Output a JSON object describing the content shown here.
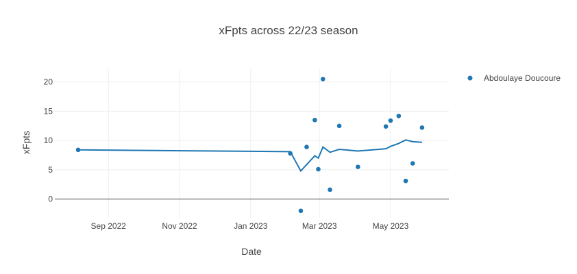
{
  "chart_data": {
    "type": "scatter",
    "title": "xFpts across 22/23 season",
    "xlabel": "Date",
    "ylabel": "xFpts",
    "xlim": [
      "2022-07-17",
      "2023-06-20"
    ],
    "ylim": [
      -3.2,
      22.3
    ],
    "grid": true,
    "legend_position": "top-right",
    "x_ticks": [
      {
        "date": "2022-09-01",
        "label": "Sep 2022"
      },
      {
        "date": "2022-11-01",
        "label": "Nov 2022"
      },
      {
        "date": "2023-01-01",
        "label": "Jan 2023"
      },
      {
        "date": "2023-03-01",
        "label": "Mar 2023"
      },
      {
        "date": "2023-05-01",
        "label": "May 2023"
      }
    ],
    "y_ticks": [
      0,
      5,
      10,
      15,
      20
    ],
    "series": [
      {
        "name": "Abdoulaye Doucoure",
        "mode": "markers",
        "color": "#1f77b4",
        "points": [
          {
            "x": "2022-08-06",
            "y": 8.4
          },
          {
            "x": "2023-02-04",
            "y": 7.8
          },
          {
            "x": "2023-02-13",
            "y": -2.0
          },
          {
            "x": "2023-02-18",
            "y": 8.9
          },
          {
            "x": "2023-02-25",
            "y": 13.5
          },
          {
            "x": "2023-02-28",
            "y": 5.1
          },
          {
            "x": "2023-03-04",
            "y": 20.5
          },
          {
            "x": "2023-03-10",
            "y": 1.6
          },
          {
            "x": "2023-03-18",
            "y": 12.5
          },
          {
            "x": "2023-04-03",
            "y": 5.5
          },
          {
            "x": "2023-04-27",
            "y": 12.4
          },
          {
            "x": "2023-05-01",
            "y": 13.4
          },
          {
            "x": "2023-05-08",
            "y": 14.2
          },
          {
            "x": "2023-05-14",
            "y": 3.1
          },
          {
            "x": "2023-05-20",
            "y": 6.1
          },
          {
            "x": "2023-05-28",
            "y": 12.2
          }
        ]
      },
      {
        "mode": "lines",
        "color": "#1f77b4",
        "points": [
          {
            "x": "2022-08-06",
            "y": 8.4
          },
          {
            "x": "2023-02-04",
            "y": 8.1
          },
          {
            "x": "2023-02-13",
            "y": 4.8
          },
          {
            "x": "2023-02-25",
            "y": 7.4
          },
          {
            "x": "2023-02-28",
            "y": 7.0
          },
          {
            "x": "2023-03-04",
            "y": 8.9
          },
          {
            "x": "2023-03-10",
            "y": 8.0
          },
          {
            "x": "2023-03-18",
            "y": 8.5
          },
          {
            "x": "2023-04-03",
            "y": 8.2
          },
          {
            "x": "2023-04-27",
            "y": 8.6
          },
          {
            "x": "2023-05-01",
            "y": 9.0
          },
          {
            "x": "2023-05-08",
            "y": 9.5
          },
          {
            "x": "2023-05-14",
            "y": 10.1
          },
          {
            "x": "2023-05-20",
            "y": 9.8
          },
          {
            "x": "2023-05-28",
            "y": 9.7
          }
        ]
      }
    ]
  }
}
